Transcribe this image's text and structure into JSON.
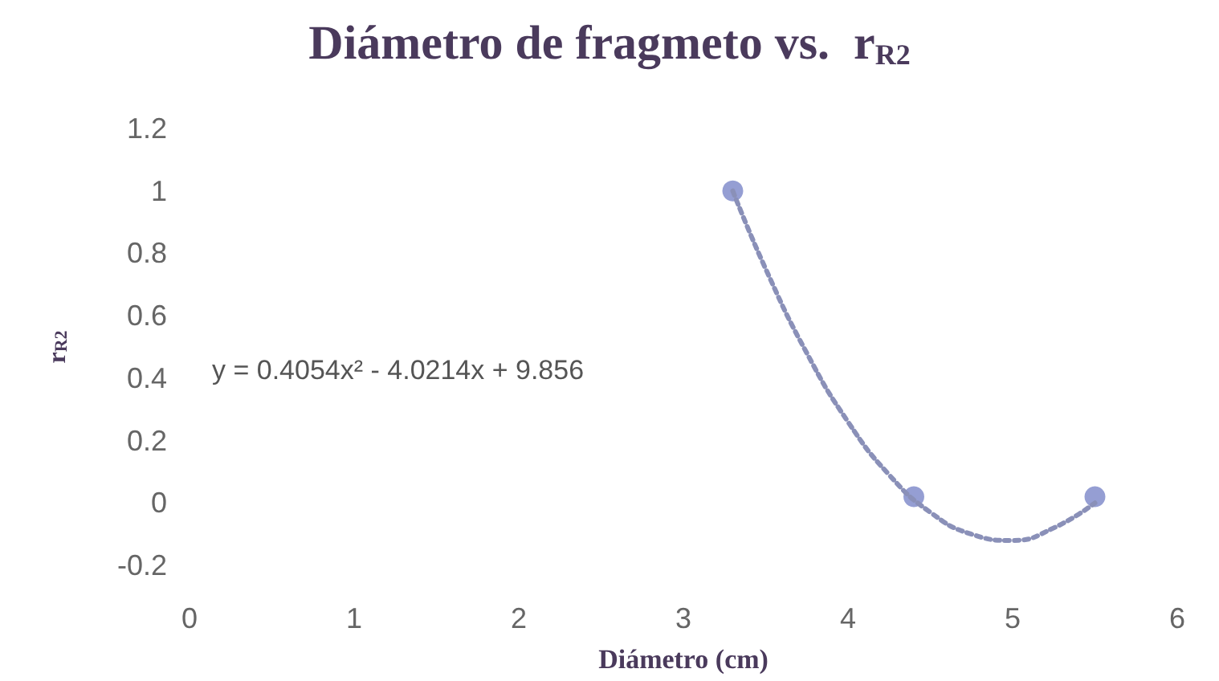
{
  "chart_data": {
    "type": "scatter",
    "title": "Diámetro de fragmeto vs.  r$_{R2}$",
    "xlabel": "Diámetro (cm)",
    "ylabel": "r$_{R2}$",
    "annotations": [
      "y = 0.4054x² - 4.0214x + 9.856"
    ],
    "xlim": [
      0,
      6
    ],
    "xticks": [
      0,
      1,
      2,
      3,
      4,
      5,
      6
    ],
    "ylim": [
      -0.2,
      1.2
    ],
    "yticks": [
      -0.2,
      0,
      0.2,
      0.4,
      0.6,
      0.8,
      1,
      1.2
    ],
    "grid": false,
    "series": [
      {
        "color": "#7b86c8",
        "marker": "circle",
        "x": [
          3.3,
          4.4,
          5.5
        ],
        "values": [
          1,
          0.02,
          0.02
        ]
      },
      {
        "type": "line",
        "color": "#8a90b8",
        "marker": "none",
        "line_style": "dotted",
        "x": [
          3.3,
          3.5,
          3.75,
          4,
          4.25,
          4.5,
          4.75,
          5,
          5.25,
          5.5
        ],
        "values": [
          1,
          0.75,
          0.48,
          0.26,
          0.09,
          -0.03,
          -0.1,
          -0.12,
          -0.08,
          0
        ]
      }
    ]
  }
}
